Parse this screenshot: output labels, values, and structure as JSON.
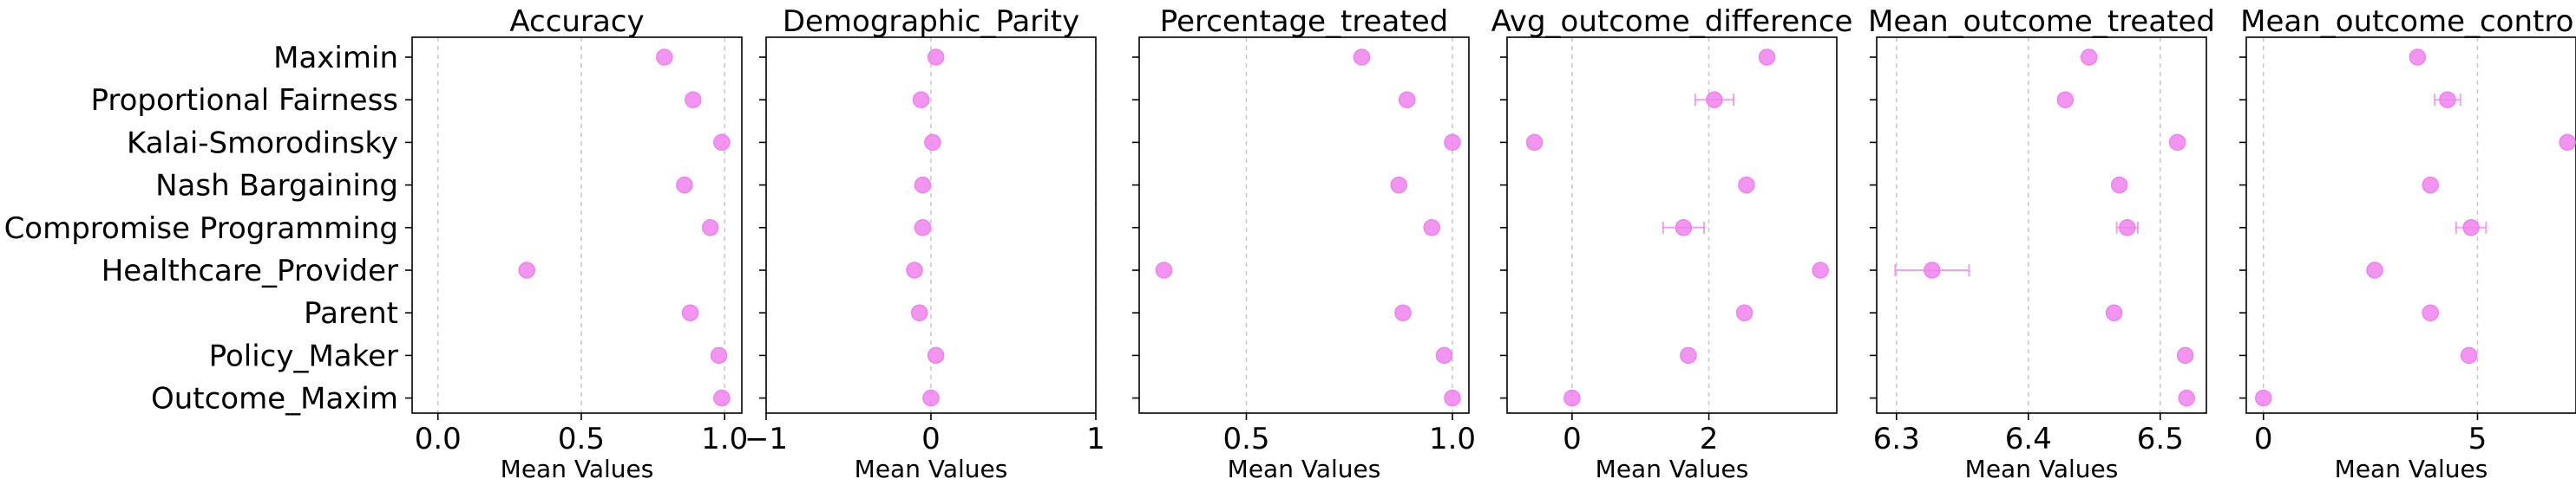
{
  "chart_data": {
    "type": "scatter",
    "categories": [
      "Maximin",
      "Proportional Fairness",
      "Kalai-Smorodinsky",
      "Nash Bargaining",
      "Compromise Programming",
      "Healthcare_Provider",
      "Parent",
      "Policy_Maker",
      "Outcome_Maxim"
    ],
    "xlabel": "Mean Values",
    "marker_color": "#ee82ee",
    "grid": "vertical dashed",
    "panels": [
      {
        "title": "Accuracy",
        "xlim": [
          -0.09,
          1.06
        ],
        "xticks": [
          0.0,
          0.5,
          1.0
        ],
        "xtick_labels": [
          "0.0",
          "0.5",
          "1.0"
        ],
        "values": [
          0.79,
          0.89,
          0.99,
          0.86,
          0.95,
          0.31,
          0.88,
          0.98,
          0.99
        ],
        "errors": [
          0,
          0,
          0,
          0,
          0,
          0,
          0,
          0,
          0
        ]
      },
      {
        "title": "Demographic_Parity",
        "xlim": [
          -1.0,
          1.0
        ],
        "xticks": [
          -1,
          0,
          1
        ],
        "xtick_labels": [
          "−1",
          "0",
          "1"
        ],
        "values": [
          0.03,
          -0.06,
          0.01,
          -0.05,
          -0.05,
          -0.1,
          -0.07,
          0.03,
          0.0
        ],
        "errors": [
          0,
          0,
          0,
          0,
          0,
          0,
          0,
          0,
          0
        ]
      },
      {
        "title": "Percentage_treated",
        "xlim": [
          0.24,
          1.04
        ],
        "xticks": [
          0.5,
          1.0
        ],
        "xtick_labels": [
          "0.5",
          "1.0"
        ],
        "values": [
          0.78,
          0.89,
          1.0,
          0.87,
          0.95,
          0.3,
          0.88,
          0.98,
          1.0
        ],
        "errors": [
          0,
          0,
          0,
          0,
          0,
          0,
          0,
          0,
          0
        ]
      },
      {
        "title": "Avg_outcome_difference",
        "xlim": [
          -0.95,
          3.87
        ],
        "xticks": [
          0,
          2
        ],
        "xtick_labels": [
          "0",
          "2"
        ],
        "values": [
          2.85,
          2.08,
          -0.55,
          2.55,
          1.63,
          3.63,
          2.52,
          1.7,
          0.0
        ],
        "errors": [
          0,
          0.28,
          0,
          0,
          0.3,
          0,
          0,
          0,
          0
        ]
      },
      {
        "title": "Mean_outcome_treated",
        "xlim": [
          6.285,
          6.535
        ],
        "xticks": [
          6.3,
          6.4,
          6.5
        ],
        "xtick_labels": [
          "6.3",
          "6.4",
          "6.5"
        ],
        "values": [
          6.446,
          6.428,
          6.513,
          6.469,
          6.475,
          6.327,
          6.465,
          6.519,
          6.52
        ],
        "errors": [
          0,
          0,
          0,
          0,
          0.008,
          0.028,
          0,
          0,
          0
        ]
      },
      {
        "title": "Mean_outcome_control",
        "xlim": [
          -0.4,
          7.3
        ],
        "xticks": [
          0,
          5
        ],
        "xtick_labels": [
          "0",
          "5"
        ],
        "values": [
          3.6,
          4.3,
          7.1,
          3.9,
          4.85,
          2.6,
          3.9,
          4.8,
          0.0
        ],
        "errors": [
          0,
          0.3,
          0,
          0,
          0.35,
          0,
          0,
          0,
          0
        ]
      }
    ]
  }
}
